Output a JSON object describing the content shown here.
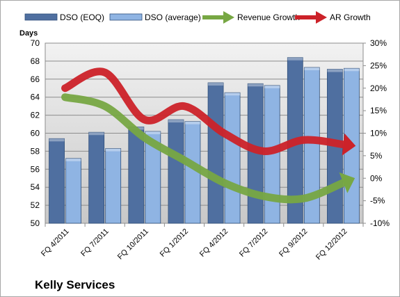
{
  "chart_data": {
    "type": "bar",
    "title": "Kelly Services",
    "ylabel_left": "Days",
    "categories": [
      "FQ 4/2011",
      "FQ 7/2011",
      "FQ 10/2011",
      "FQ 1/2012",
      "FQ 4/2012",
      "FQ 7/2012",
      "FQ 9/2012",
      "FQ 12/2012"
    ],
    "left_axis": {
      "ylim": [
        50,
        70
      ],
      "ticks": [
        "50",
        "52",
        "54",
        "56",
        "58",
        "60",
        "62",
        "64",
        "66",
        "68",
        "70"
      ]
    },
    "right_axis": {
      "ylim": [
        -10,
        30
      ],
      "ticks": [
        "-10%",
        "-5%",
        "0%",
        "5%",
        "10%",
        "15%",
        "20%",
        "25%",
        "30%"
      ]
    },
    "series": [
      {
        "name": "DSO (EOQ)",
        "kind": "bar",
        "axis": "left",
        "color": "#4f6fa0",
        "values": [
          59.4,
          60.1,
          60.7,
          61.5,
          65.6,
          65.5,
          68.4,
          67.1
        ]
      },
      {
        "name": "DSO (average)",
        "kind": "bar",
        "axis": "left",
        "color": "#8fb4e3",
        "values": [
          57.2,
          58.3,
          60.2,
          61.3,
          64.5,
          65.3,
          67.3,
          67.2
        ]
      },
      {
        "name": "Revenue Growth",
        "kind": "arrow-line",
        "axis": "right",
        "color": "#77a743",
        "values": [
          18.0,
          16.0,
          9.0,
          4.0,
          -1.0,
          -4.0,
          -4.5,
          -1.0
        ]
      },
      {
        "name": "AR Growth",
        "kind": "arrow-line",
        "axis": "right",
        "color": "#cc2229",
        "values": [
          20.0,
          23.5,
          13.0,
          16.0,
          10.0,
          6.0,
          8.5,
          7.5
        ]
      }
    ],
    "grid": true,
    "legend_position": "top"
  },
  "colors": {
    "plot_background": "#d9d9d9",
    "gridline": "#8c8c8c"
  }
}
